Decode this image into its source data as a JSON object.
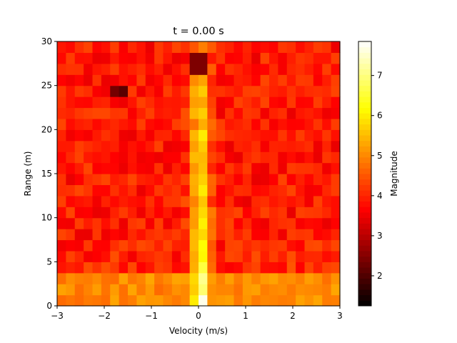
{
  "chart_data": {
    "type": "heatmap",
    "title": "t = 0.00 s",
    "xlabel": "Velocity (m/s)",
    "ylabel": "Range (m)",
    "xlim": [
      -3,
      3
    ],
    "ylim": [
      0,
      30
    ],
    "x_ticks": [
      -3,
      -2,
      -1,
      0,
      1,
      2,
      3
    ],
    "x_tick_labels": [
      "−3",
      "−2",
      "−1",
      "0",
      "1",
      "2",
      "3"
    ],
    "y_ticks": [
      0,
      5,
      10,
      15,
      20,
      25,
      30
    ],
    "y_tick_labels": [
      "0",
      "5",
      "10",
      "15",
      "20",
      "25",
      "30"
    ],
    "grid": false,
    "colormap": "hot",
    "colorbar": {
      "label": "Magnitude",
      "range": [
        1.25,
        7.85
      ],
      "ticks": [
        2,
        3,
        4,
        5,
        6,
        7
      ],
      "tick_labels": [
        "2",
        "3",
        "4",
        "5",
        "6",
        "7"
      ]
    },
    "x_bins": 32,
    "y_bins": 24,
    "x_bin_width": 0.1875,
    "y_bin_width": 1.25,
    "features": [
      {
        "label": "zero-velocity ridge",
        "velocity_range": [
          -0.1,
          0.2
        ],
        "range_range": [
          0,
          12
        ],
        "magnitude_peak": 7.7
      },
      {
        "label": "low-range band",
        "velocity_range": [
          -3,
          3
        ],
        "range_range": [
          0,
          3.5
        ],
        "magnitude_approx": 5.0
      },
      {
        "label": "background clutter",
        "magnitude_approx": 3.9
      },
      {
        "label": "dark spot",
        "velocity": -1.65,
        "range": 24.5,
        "magnitude_approx": 1.9
      },
      {
        "label": "dark spot",
        "velocity": 0.0,
        "range": 27.5,
        "magnitude_approx": 2.0
      }
    ]
  }
}
